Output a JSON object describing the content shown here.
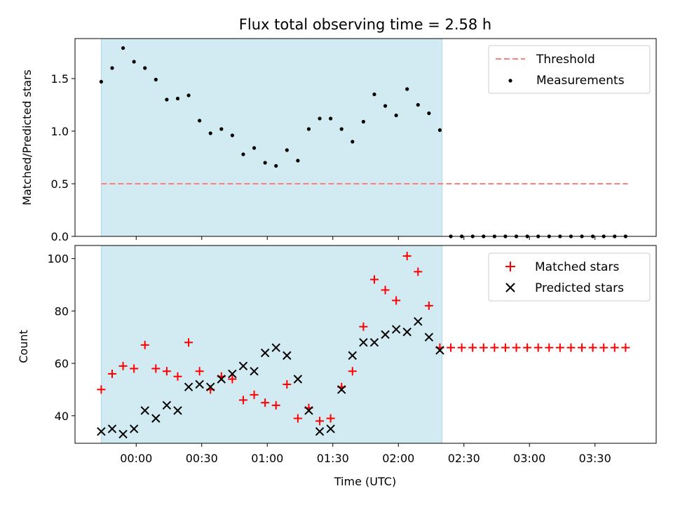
{
  "title": "Flux total observing time = 2.58 h",
  "colors": {
    "shade": "#add8e6",
    "threshold": "#ff7f7f",
    "measurement": "#000000",
    "matched": "#ff0000",
    "predicted": "#000000"
  },
  "chart_data": [
    {
      "type": "scatter",
      "ylabel": "Matched/Predicted stars",
      "ylim": [
        0,
        1.88
      ],
      "yticks": [
        0.0,
        0.5,
        1.0,
        1.5
      ],
      "ytick_labels": [
        "0.0",
        "0.5",
        "1.0",
        "1.5"
      ],
      "legend_placement": "top-right",
      "shaded_span_minutes": [
        -16,
        140
      ],
      "threshold": {
        "name": "Threshold",
        "value": 0.5,
        "x_range_minutes": [
          -16,
          225
        ]
      },
      "series": [
        {
          "name": "Measurements",
          "marker": "dot",
          "x_minutes": [
            -16,
            -11,
            -6,
            -1,
            4,
            9,
            14,
            19,
            24,
            29,
            34,
            39,
            44,
            49,
            54,
            59,
            64,
            69,
            74,
            79,
            84,
            89,
            94,
            99,
            104,
            109,
            114,
            119,
            124,
            129,
            134,
            139,
            144,
            149,
            154,
            159,
            164,
            169,
            174,
            179,
            184,
            189,
            194,
            199,
            204,
            209,
            214,
            219,
            224
          ],
          "values": [
            1.47,
            1.6,
            1.79,
            1.66,
            1.6,
            1.49,
            1.3,
            1.31,
            1.34,
            1.1,
            0.98,
            1.02,
            0.96,
            0.78,
            0.84,
            0.7,
            0.67,
            0.82,
            0.72,
            1.02,
            1.12,
            1.12,
            1.02,
            0.9,
            1.09,
            1.35,
            1.24,
            1.15,
            1.4,
            1.25,
            1.17,
            1.01,
            0,
            0,
            0,
            0,
            0,
            0,
            0,
            0,
            0,
            0,
            0,
            0,
            0,
            0,
            0,
            0,
            0
          ]
        }
      ]
    },
    {
      "type": "scatter",
      "xlabel": "Time (UTC)",
      "ylabel": "Count",
      "ylim": [
        29.5,
        105
      ],
      "yticks": [
        40,
        60,
        80,
        100
      ],
      "ytick_labels": [
        "40",
        "60",
        "80",
        "100"
      ],
      "xlim_minutes": [
        -28,
        238
      ],
      "xticks_minutes": [
        0,
        30,
        60,
        90,
        120,
        150,
        180,
        210
      ],
      "xtick_labels": [
        "00:00",
        "00:30",
        "01:00",
        "01:30",
        "02:00",
        "02:30",
        "03:00",
        "03:30"
      ],
      "legend_placement": "top-right",
      "shaded_span_minutes": [
        -16,
        140
      ],
      "series": [
        {
          "name": "Matched stars",
          "marker": "plus",
          "x_minutes": [
            -16,
            -11,
            -6,
            -1,
            4,
            9,
            14,
            19,
            24,
            29,
            34,
            39,
            44,
            49,
            54,
            59,
            64,
            69,
            74,
            79,
            84,
            89,
            94,
            99,
            104,
            109,
            114,
            119,
            124,
            129,
            134,
            139,
            144,
            149,
            154,
            159,
            164,
            169,
            174,
            179,
            184,
            189,
            194,
            199,
            204,
            209,
            214,
            219,
            224
          ],
          "values": [
            50,
            56,
            59,
            58,
            67,
            58,
            57,
            55,
            68,
            57,
            50,
            55,
            54,
            46,
            48,
            45,
            44,
            52,
            39,
            43,
            38,
            39,
            51,
            57,
            74,
            92,
            88,
            84,
            101,
            95,
            82,
            66,
            66,
            66,
            66,
            66,
            66,
            66,
            66,
            66,
            66,
            66,
            66,
            66,
            66,
            66,
            66,
            66,
            66
          ]
        },
        {
          "name": "Predicted stars",
          "marker": "x",
          "x_minutes": [
            -16,
            -11,
            -6,
            -1,
            4,
            9,
            14,
            19,
            24,
            29,
            34,
            39,
            44,
            49,
            54,
            59,
            64,
            69,
            74,
            79,
            84,
            89,
            94,
            99,
            104,
            109,
            114,
            119,
            124,
            129,
            134,
            139
          ],
          "values": [
            34,
            35,
            33,
            35,
            42,
            39,
            44,
            42,
            51,
            52,
            51,
            54,
            56,
            59,
            57,
            64,
            66,
            63,
            54,
            42,
            34,
            35,
            50,
            63,
            68,
            68,
            71,
            73,
            72,
            76,
            70,
            65
          ]
        }
      ]
    }
  ]
}
